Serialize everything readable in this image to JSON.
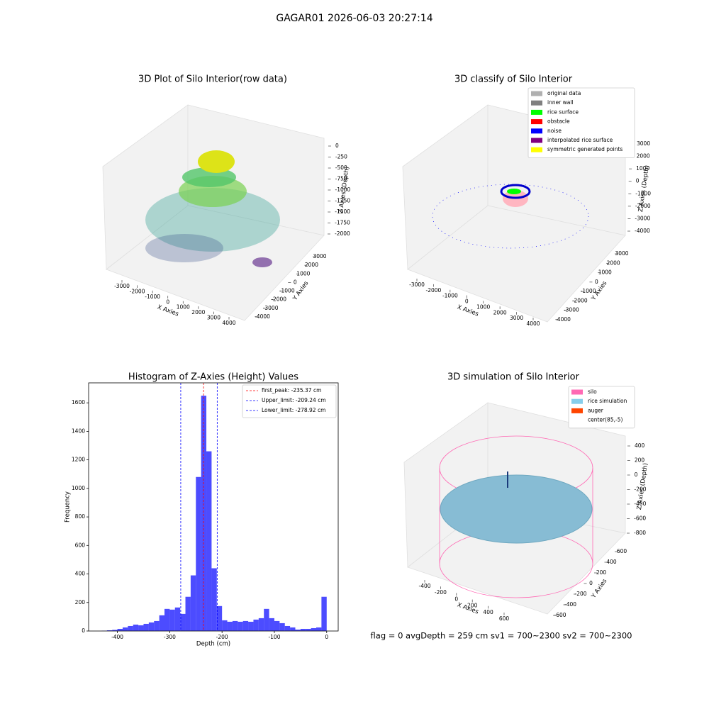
{
  "title": "GAGAR01 2026-06-03 20:27:14",
  "footer": "flag = 0     avgDepth = 259 cm  sv1 = 700~2300  sv2 = 700~2300",
  "chart_data": [
    {
      "type": "scatter3d",
      "title": "3D Plot of Silo Interior(row data)",
      "xlabel": "X Axies",
      "ylabel": "Y Axies",
      "zlabel": "Z Axies (Depth)",
      "xticks": [
        -3000,
        -2000,
        -1000,
        0,
        1000,
        2000,
        3000,
        4000
      ],
      "yticks": [
        3000,
        2000,
        1000,
        0,
        -1000,
        -2000,
        -3000,
        -4000
      ],
      "zticks": [
        0,
        -250,
        -500,
        -750,
        -1000,
        -1250,
        -1500,
        -1750,
        -2000
      ]
    },
    {
      "type": "scatter3d",
      "title": "3D classify of Silo Interior",
      "xlabel": "X Axies",
      "ylabel": "Y Axies",
      "zlabel": "Z Axies (Depth)",
      "xticks": [
        -3000,
        -2000,
        -1000,
        0,
        1000,
        2000,
        3000,
        4000
      ],
      "yticks": [
        3000,
        2000,
        1000,
        0,
        -1000,
        -2000,
        -3000,
        -4000
      ],
      "zticks": [
        3000,
        2000,
        1000,
        0,
        -1000,
        -2000,
        -3000,
        -4000
      ],
      "legend": [
        {
          "name": "original data",
          "color": "#b0b0b0"
        },
        {
          "name": "inner wall",
          "color": "#808080"
        },
        {
          "name": "rice surface",
          "color": "#00ff00"
        },
        {
          "name": "obstacle",
          "color": "#ff0000"
        },
        {
          "name": "noise",
          "color": "#0000ff"
        },
        {
          "name": "interpolated rice surface",
          "color": "#800080"
        },
        {
          "name": "symmetric generated points",
          "color": "#ffff00"
        }
      ]
    },
    {
      "type": "histogram",
      "title": "Histogram of Z-Axies (Height) Values",
      "xlabel": "Depth (cm)",
      "ylabel": "Frequency",
      "color": "#0000ff",
      "bins": [
        -440,
        -430,
        -420,
        -410,
        -400,
        -390,
        -380,
        -370,
        -360,
        -350,
        -340,
        -330,
        -320,
        -310,
        -300,
        -290,
        -280,
        -270,
        -260,
        -250,
        -240,
        -230,
        -220,
        -210,
        -200,
        -190,
        -180,
        -170,
        -160,
        -150,
        -140,
        -130,
        -120,
        -110,
        -100,
        -90,
        -80,
        -70,
        -60,
        -50,
        -40,
        -30,
        -20,
        -10,
        0
      ],
      "values": [
        0,
        2,
        5,
        8,
        15,
        25,
        35,
        45,
        40,
        50,
        60,
        70,
        110,
        155,
        150,
        165,
        120,
        240,
        390,
        1080,
        1650,
        1260,
        440,
        175,
        75,
        65,
        70,
        65,
        70,
        65,
        80,
        90,
        155,
        90,
        70,
        55,
        35,
        25,
        10,
        15,
        15,
        20,
        25,
        240
      ],
      "xlim": [
        -455,
        22
      ],
      "ylim": [
        0,
        1740
      ],
      "xticks": [
        -400,
        -300,
        -200,
        -100,
        0
      ],
      "yticks": [
        0,
        200,
        400,
        600,
        800,
        1000,
        1200,
        1400,
        1600
      ],
      "lines": [
        {
          "label": "first_peak: -235.37 cm",
          "value": -235.37,
          "color": "#ff0000"
        },
        {
          "label": "Upper_limit: -209.24 cm",
          "value": -209.24,
          "color": "#0000ff"
        },
        {
          "label": "Lower_limit: -278.92 cm",
          "value": -278.92,
          "color": "#0000ff"
        }
      ]
    },
    {
      "type": "surface3d",
      "title": "3D simulation of Silo Interior",
      "xlabel": "X Axies",
      "ylabel": "Y Axies",
      "zlabel": "Z Axies (Depth)",
      "xticks": [
        -400,
        -200,
        0,
        200,
        400,
        600
      ],
      "yticks": [
        600,
        400,
        200,
        0,
        -200,
        -400,
        -600
      ],
      "zticks": [
        400,
        200,
        0,
        -200,
        -400,
        -600,
        -800
      ],
      "legend": [
        {
          "name": "silo",
          "color": "#ff69b4"
        },
        {
          "name": "rice simulation",
          "color": "#87ceeb"
        },
        {
          "name": "auger",
          "color": "#ff4500"
        },
        {
          "name": "center(85,-5)",
          "color": "#ffffff"
        }
      ]
    }
  ]
}
